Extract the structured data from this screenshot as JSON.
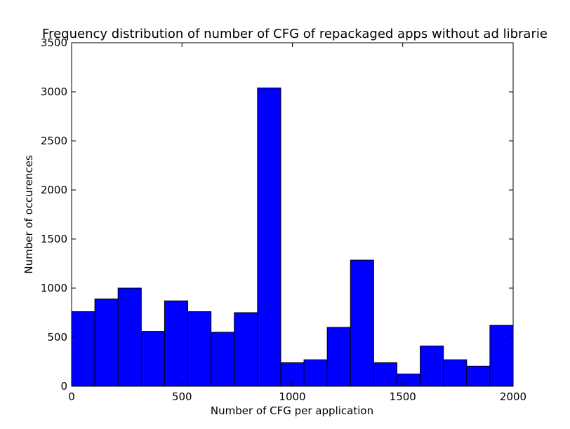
{
  "chart_data": {
    "type": "bar",
    "title": "Frequency distribution of number of CFG of repackaged apps without ad librarie",
    "xlabel": "Number of CFG per application",
    "ylabel": "Number of occurences",
    "xlim": [
      0,
      2000
    ],
    "ylim": [
      0,
      3500
    ],
    "xticks": [
      "0",
      "500",
      "1000",
      "1500",
      "2000"
    ],
    "yticks": [
      "0",
      "500",
      "1000",
      "1500",
      "2000",
      "2500",
      "3000",
      "3500"
    ],
    "bin_edges": [
      0,
      105.3,
      210.5,
      315.8,
      421.1,
      526.3,
      631.6,
      736.8,
      842.1,
      947.4,
      1052.6,
      1157.9,
      1263.2,
      1368.4,
      1473.7,
      1578.9,
      1684.2,
      1789.5,
      1894.7,
      2000
    ],
    "values": [
      760,
      890,
      1000,
      560,
      870,
      760,
      550,
      750,
      3040,
      240,
      270,
      600,
      1285,
      240,
      125,
      410,
      270,
      205,
      620
    ],
    "bar_color": "#0000ff",
    "edge_color": "#000000",
    "grid": false
  }
}
